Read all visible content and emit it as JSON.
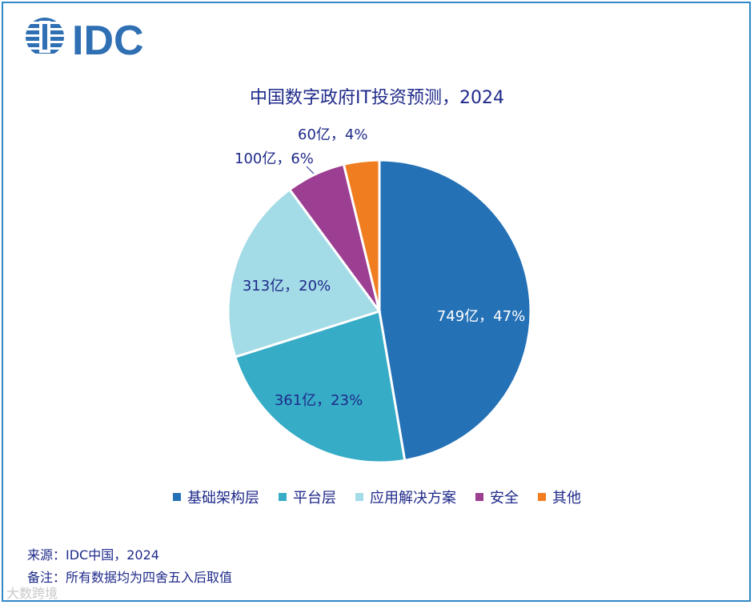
{
  "logo": {
    "text": "IDC",
    "color": "#2f6fb3"
  },
  "chart_data": {
    "type": "pie",
    "title": "中国数字政府IT投资预测，2024",
    "slices": [
      {
        "name": "基础架构层",
        "value": 749,
        "percent": 47,
        "label": "749亿，47%",
        "color": "#2471b6"
      },
      {
        "name": "平台层",
        "value": 361,
        "percent": 23,
        "label": "361亿，23%",
        "color": "#36acc6"
      },
      {
        "name": "应用解决方案",
        "value": 313,
        "percent": 20,
        "label": "313亿，20%",
        "color": "#a3dbe6"
      },
      {
        "name": "安全",
        "value": 100,
        "percent": 6,
        "label": "100亿，6%",
        "color": "#9c3e92"
      },
      {
        "name": "其他",
        "value": 60,
        "percent": 4,
        "label": "60亿，4%",
        "color": "#f07d20"
      }
    ],
    "legend_position": "bottom"
  },
  "footer": {
    "source": "来源：IDC中国，2024",
    "note": "备注：所有数据均为四舍五入后取值"
  },
  "watermark": "大数跨境"
}
